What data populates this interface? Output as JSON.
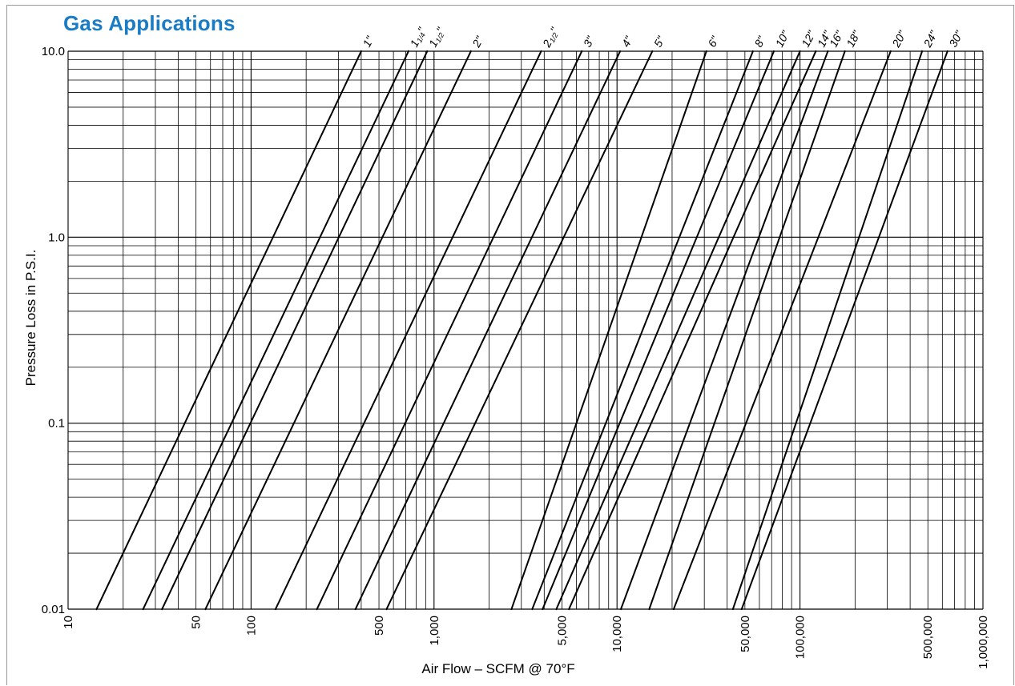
{
  "chart_data": {
    "type": "line",
    "title": "Gas Applications",
    "xlabel": "Air Flow – SCFM @ 70°F",
    "ylabel": "Pressure Loss in P.S.I.",
    "x_scale": "log",
    "y_scale": "log",
    "xlim": [
      10,
      1000000
    ],
    "ylim": [
      0.01,
      10.0
    ],
    "x_ticks": [
      {
        "value": 10,
        "label": "10"
      },
      {
        "value": 50,
        "label": "50"
      },
      {
        "value": 100,
        "label": "100"
      },
      {
        "value": 500,
        "label": "500"
      },
      {
        "value": 1000,
        "label": "1,000"
      },
      {
        "value": 5000,
        "label": "5,000"
      },
      {
        "value": 10000,
        "label": "10,000"
      },
      {
        "value": 50000,
        "label": "50,000"
      },
      {
        "value": 100000,
        "label": "100,000"
      },
      {
        "value": 500000,
        "label": "500,000"
      },
      {
        "value": 1000000,
        "label": "1,000,000"
      }
    ],
    "y_ticks": [
      {
        "value": 0.01,
        "label": "0.01"
      },
      {
        "value": 0.1,
        "label": "0.1"
      },
      {
        "value": 1.0,
        "label": "1.0"
      },
      {
        "value": 10.0,
        "label": "10.0"
      }
    ],
    "grid": true,
    "series": [
      {
        "name": "1\"",
        "main": "1",
        "frac": "",
        "points": [
          [
            14.3,
            0.01
          ],
          [
            400,
            10.0
          ]
        ]
      },
      {
        "name": "1 1/4\"",
        "main": "1",
        "frac": "1/4",
        "points": [
          [
            25.7,
            0.01
          ],
          [
            725,
            10.0
          ]
        ]
      },
      {
        "name": "1 1/2\"",
        "main": "1",
        "frac": "1/2",
        "points": [
          [
            32.6,
            0.01
          ],
          [
            918,
            10.0
          ]
        ]
      },
      {
        "name": "2\"",
        "main": "2",
        "frac": "",
        "points": [
          [
            56.3,
            0.01
          ],
          [
            1590,
            10.0
          ]
        ]
      },
      {
        "name": "2 1/2\"",
        "main": "2",
        "frac": "1/2",
        "points": [
          [
            136,
            0.01
          ],
          [
            3850,
            10.0
          ]
        ]
      },
      {
        "name": "3\"",
        "main": "3",
        "frac": "",
        "points": [
          [
            229,
            0.01
          ],
          [
            6420,
            10.0
          ]
        ]
      },
      {
        "name": "4\"",
        "main": "4",
        "frac": "",
        "points": [
          [
            372,
            0.01
          ],
          [
            10400,
            10.0
          ]
        ]
      },
      {
        "name": "5\"",
        "main": "5",
        "frac": "",
        "points": [
          [
            550,
            0.01
          ],
          [
            15600,
            10.0
          ]
        ]
      },
      {
        "name": "6\"",
        "main": "6",
        "frac": "",
        "points": [
          [
            2650,
            0.01
          ],
          [
            30800,
            10.0
          ]
        ]
      },
      {
        "name": "8\"",
        "main": "8",
        "frac": "",
        "points": [
          [
            3440,
            0.01
          ],
          [
            55300,
            10.0
          ]
        ]
      },
      {
        "name": "10\"",
        "main": "10",
        "frac": "",
        "points": [
          [
            3920,
            0.01
          ],
          [
            72000,
            10.0
          ]
        ]
      },
      {
        "name": "12\"",
        "main": "12",
        "frac": "",
        "points": [
          [
            4660,
            0.01
          ],
          [
            100000,
            10.0
          ]
        ]
      },
      {
        "name": "14\"",
        "main": "14",
        "frac": "",
        "points": [
          [
            5460,
            0.01
          ],
          [
            122000,
            10.0
          ]
        ]
      },
      {
        "name": "16\"",
        "main": "16",
        "frac": "",
        "points": [
          [
            10500,
            0.01
          ],
          [
            142000,
            10.0
          ]
        ]
      },
      {
        "name": "18\"",
        "main": "18",
        "frac": "",
        "points": [
          [
            15000,
            0.01
          ],
          [
            176000,
            10.0
          ]
        ]
      },
      {
        "name": "20\"",
        "main": "20",
        "frac": "",
        "points": [
          [
            20400,
            0.01
          ],
          [
            313000,
            10.0
          ]
        ]
      },
      {
        "name": "24\"",
        "main": "24",
        "frac": "",
        "points": [
          [
            43000,
            0.01
          ],
          [
            465000,
            10.0
          ]
        ]
      },
      {
        "name": "30\"",
        "main": "30",
        "frac": "",
        "points": [
          [
            48000,
            0.01
          ],
          [
            640000,
            10.0
          ]
        ]
      }
    ]
  }
}
